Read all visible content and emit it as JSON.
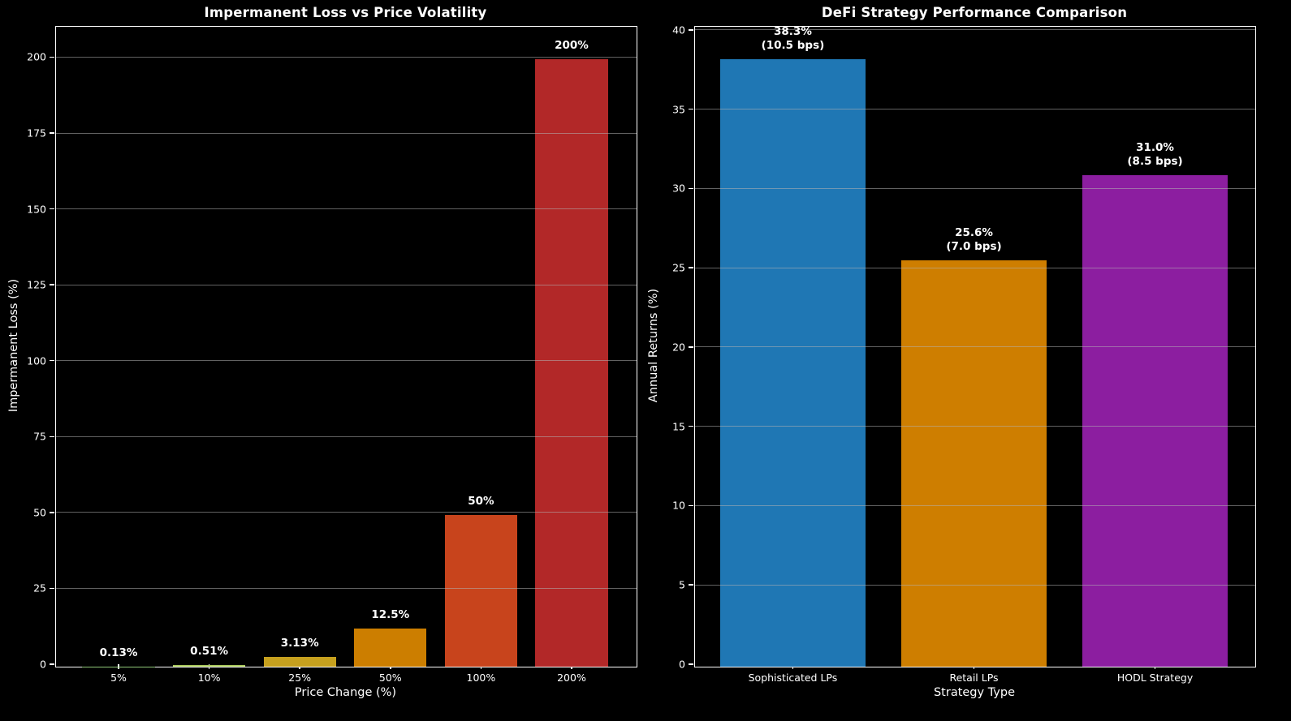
{
  "figure": {
    "background": "#000000",
    "text_color": "#ffffff",
    "grid_color": "#b2b2b2",
    "spine_color": "#ffffff"
  },
  "chart_data": [
    {
      "type": "bar",
      "title": "Impermanent Loss vs Price Volatility",
      "xlabel": "Price Change (%)",
      "ylabel": "Impermanent Loss (%)",
      "categories": [
        "5%",
        "10%",
        "25%",
        "50%",
        "100%",
        "200%"
      ],
      "values": [
        0.13,
        0.51,
        3.13,
        12.5,
        50,
        200
      ],
      "bar_labels": [
        "0.13%",
        "0.51%",
        "3.13%",
        "12.5%",
        "50%",
        "200%"
      ],
      "bar_colors": [
        "#90c878",
        "#a9c85c",
        "#c6a01e",
        "#cc7e00",
        "#c8441c",
        "#b22828"
      ],
      "yticks": [
        0,
        25,
        50,
        75,
        100,
        125,
        150,
        175,
        200
      ],
      "ylim": [
        0,
        210
      ],
      "grid": true,
      "legend": false
    },
    {
      "type": "bar",
      "title": "DeFi Strategy Performance Comparison",
      "xlabel": "Strategy Type",
      "ylabel": "Annual Returns (%)",
      "categories": [
        "Sophisticated LPs",
        "Retail LPs",
        "HODL Strategy"
      ],
      "values": [
        38.3,
        25.6,
        31.0
      ],
      "bar_labels": [
        "38.3%\n(10.5 bps)",
        "25.6%\n(7.0 bps)",
        "31.0%\n(8.5 bps)"
      ],
      "bar_colors": [
        "#1f77b4",
        "#ce7e00",
        "#8c1ea0"
      ],
      "yticks": [
        0,
        5,
        10,
        15,
        20,
        25,
        30,
        35,
        40
      ],
      "ylim": [
        0,
        40.2
      ],
      "grid": true,
      "legend": false
    }
  ]
}
